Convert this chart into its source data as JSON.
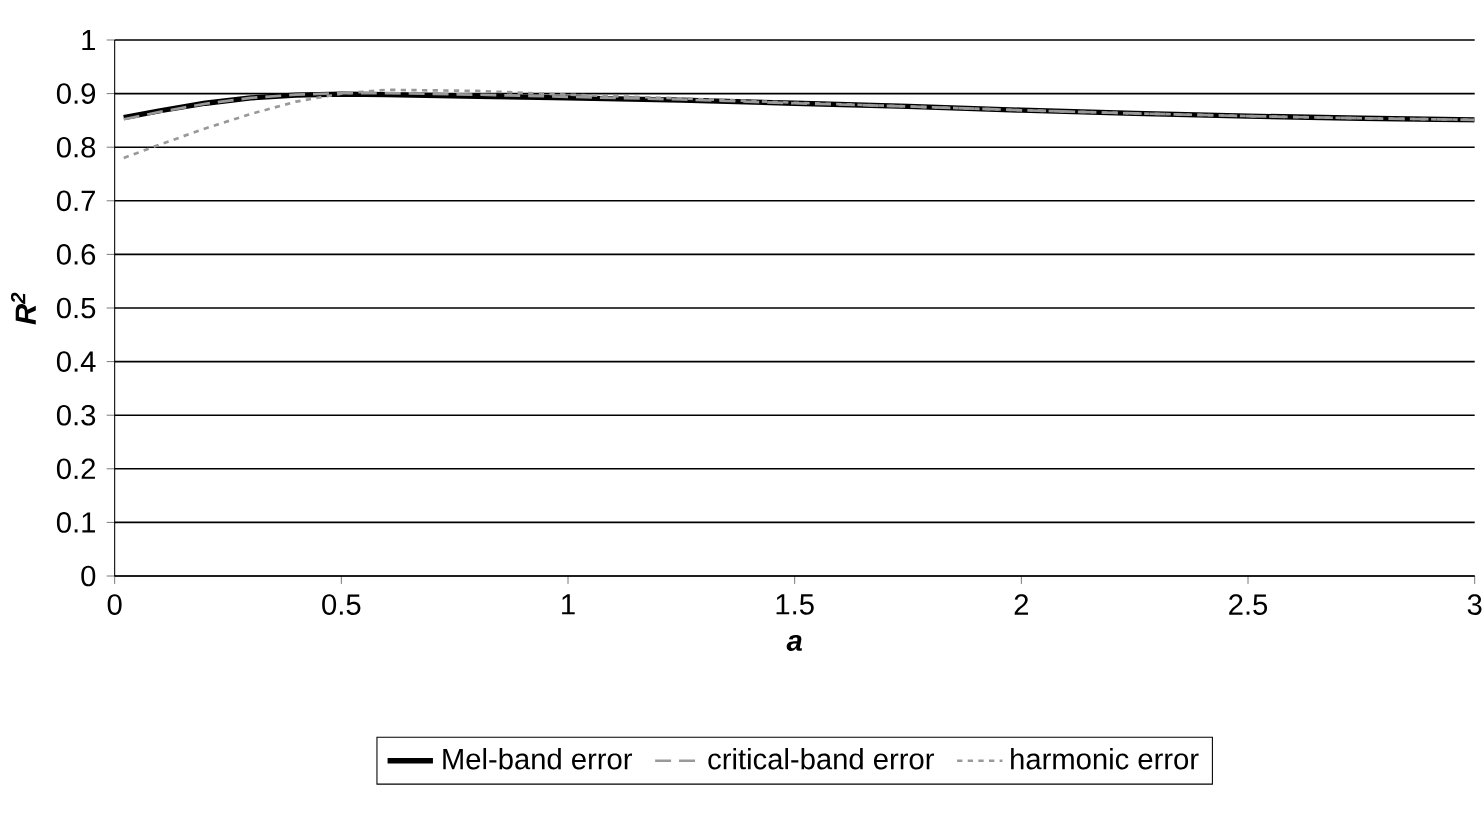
{
  "chart_data": {
    "type": "line",
    "xlabel": "a",
    "ylabel": "R$^{2}$",
    "xlim": [
      0,
      3
    ],
    "ylim": [
      0,
      1
    ],
    "xticks": [
      0,
      0.5,
      1,
      1.5,
      2,
      2.5,
      3
    ],
    "yticks": [
      0,
      0.1,
      0.2,
      0.3,
      0.4,
      0.5,
      0.6,
      0.7,
      0.8,
      0.9,
      1
    ],
    "grid": "y",
    "legend": "bottom",
    "marker": "none",
    "x": [
      0.02,
      0.1,
      0.2,
      0.3,
      0.4,
      0.5,
      0.6,
      0.8,
      1,
      1.25,
      1.5,
      1.75,
      2,
      2.25,
      2.5,
      2.75,
      3
    ],
    "series": [
      {
        "name": "Mel-band error",
        "color": "#000000",
        "line_style": "solid",
        "values": [
          0.855,
          0.868,
          0.882,
          0.892,
          0.897,
          0.899,
          0.898,
          0.895,
          0.892,
          0.888,
          0.882,
          0.876,
          0.869,
          0.863,
          0.858,
          0.854,
          0.851
        ]
      },
      {
        "name": "critical-band error",
        "color": "#999999",
        "line_style": "dashed",
        "values": [
          0.852,
          0.866,
          0.881,
          0.892,
          0.898,
          0.901,
          0.901,
          0.898,
          0.894,
          0.889,
          0.882,
          0.876,
          0.869,
          0.863,
          0.858,
          0.854,
          0.851
        ]
      },
      {
        "name": "harmonic error",
        "color": "#999999",
        "line_style": "dotted",
        "values": [
          0.78,
          0.805,
          0.835,
          0.862,
          0.885,
          0.9,
          0.907,
          0.905,
          0.898,
          0.891,
          0.883,
          0.876,
          0.869,
          0.863,
          0.858,
          0.854,
          0.851
        ]
      }
    ]
  }
}
